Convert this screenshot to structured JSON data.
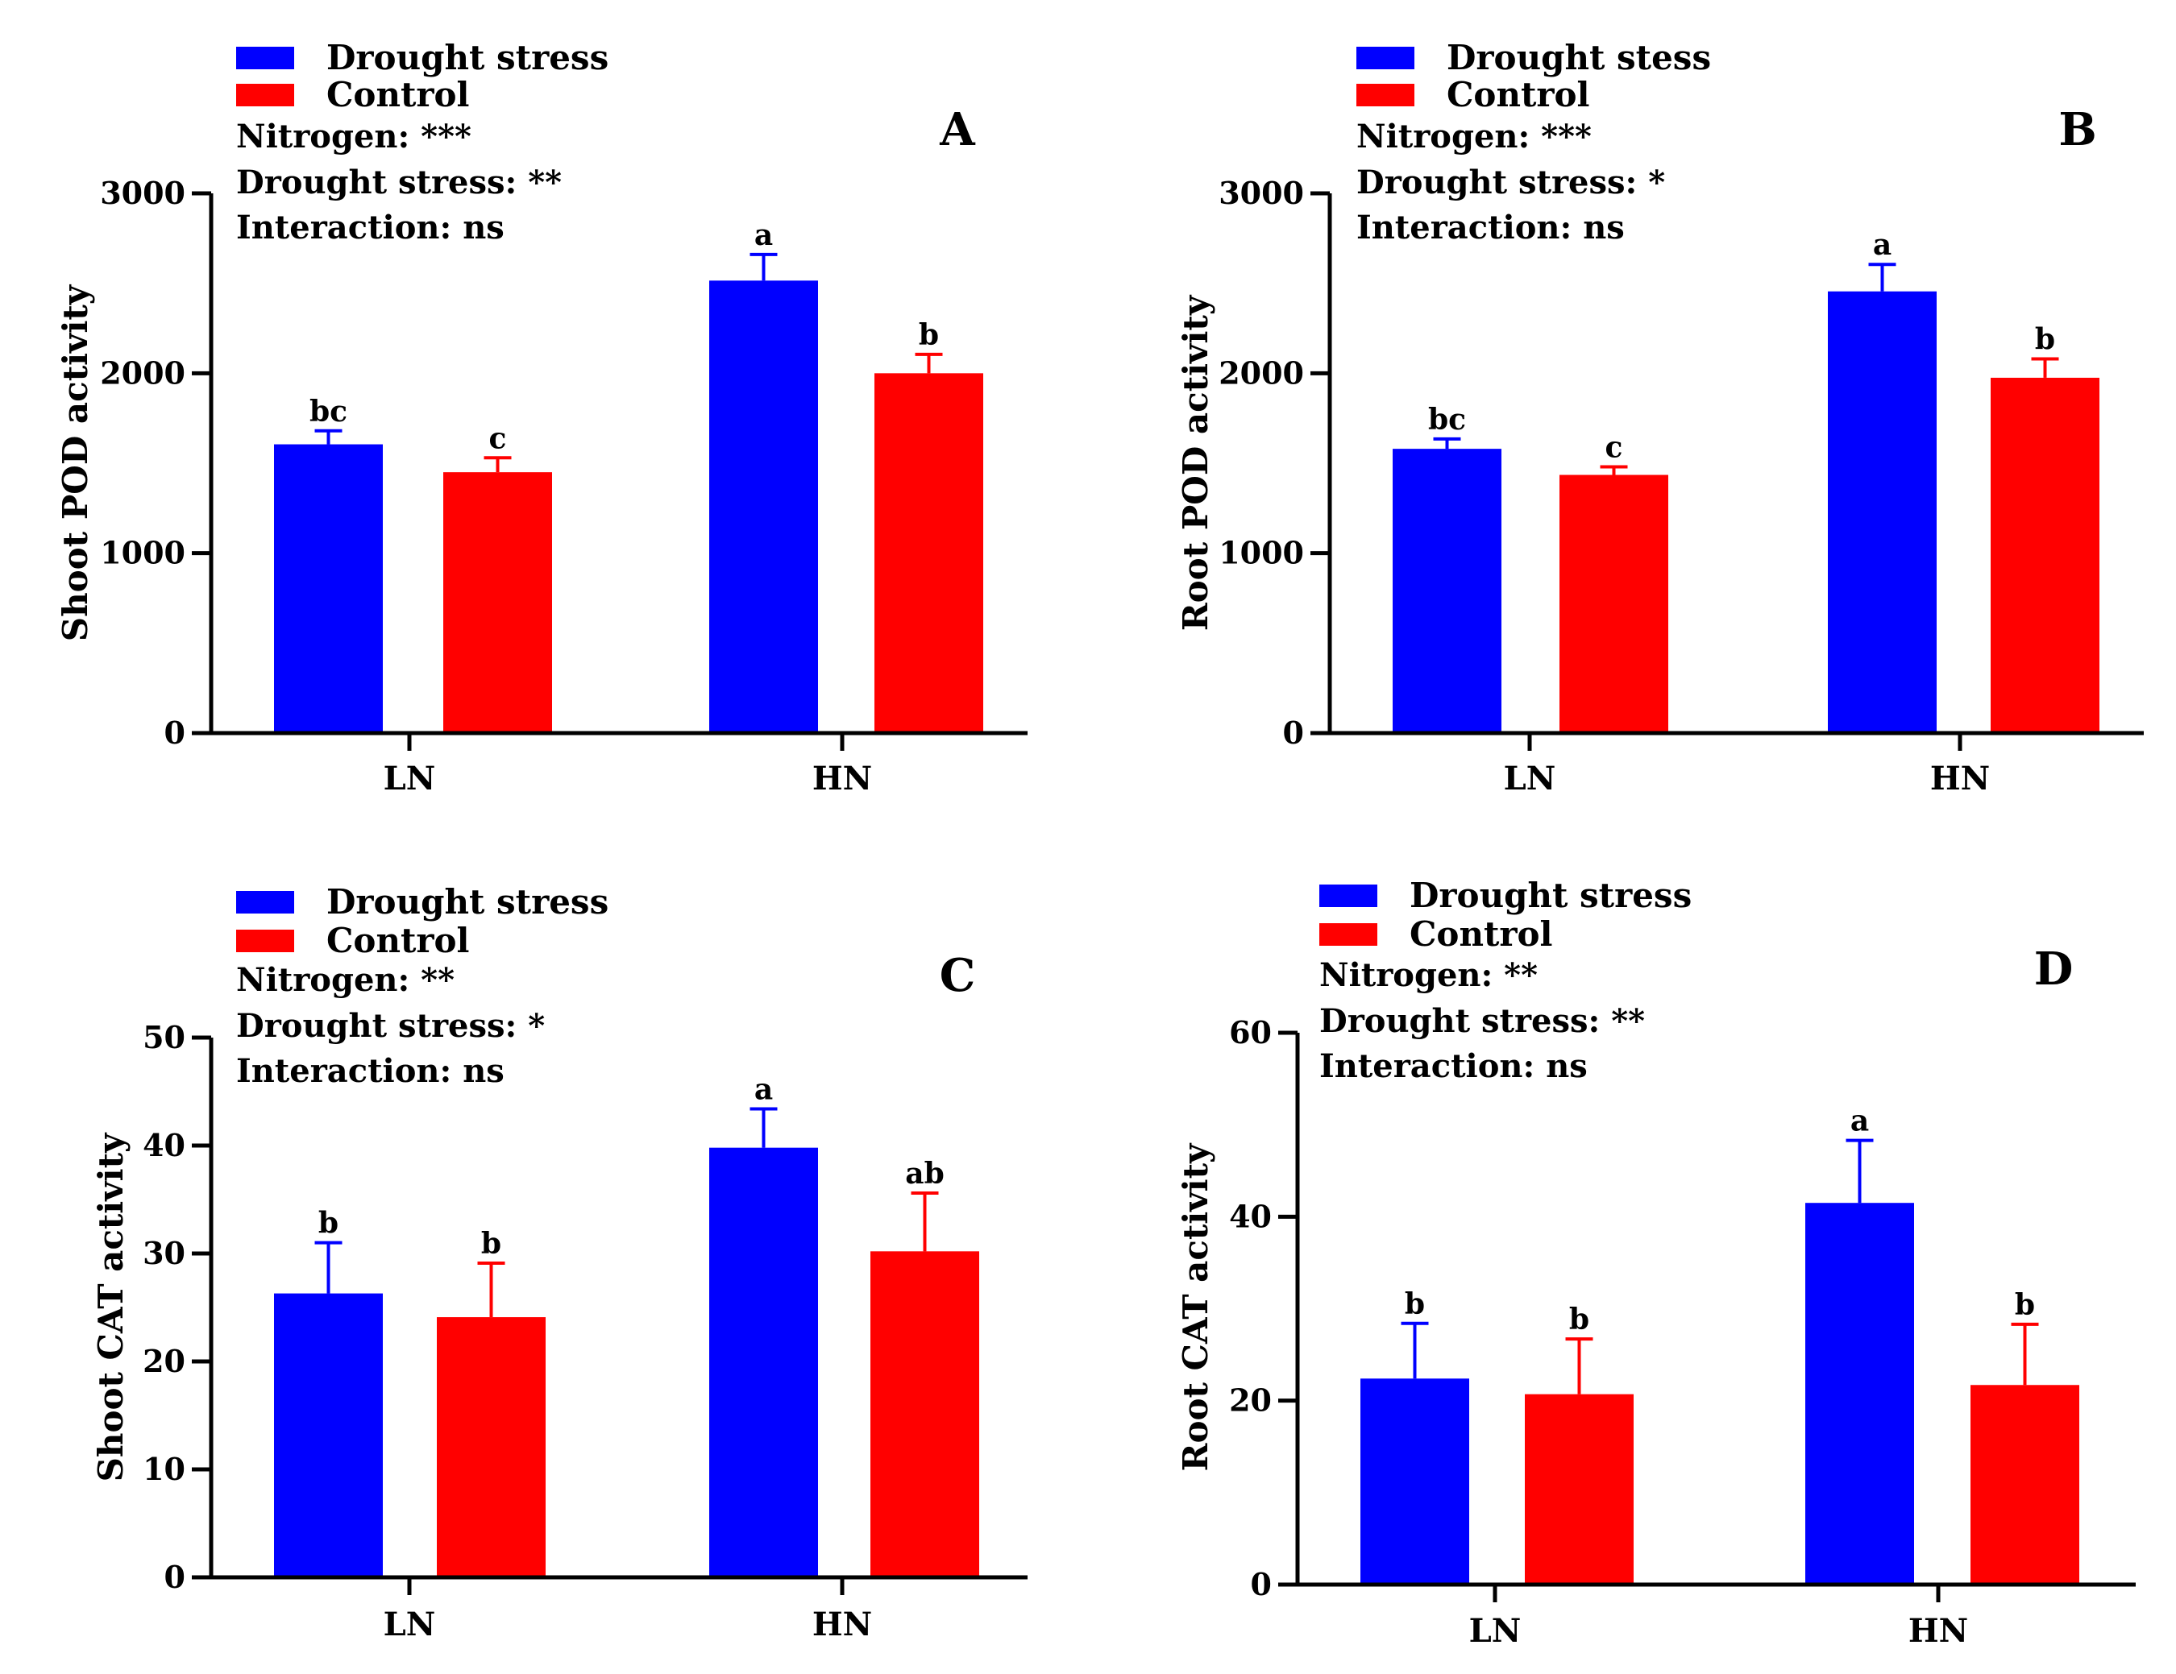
{
  "chart_data": [
    {
      "type": "bar",
      "panel": "A",
      "ylabel": "Shoot POD activity",
      "xlabel": "",
      "categories": [
        "LN",
        "HN"
      ],
      "ylim": [
        0,
        3000
      ],
      "yticks": [
        0,
        1000,
        2000,
        3000
      ],
      "legend": [
        "Drought stress",
        "Control"
      ],
      "stats": [
        "Nitrogen: ***",
        "Drought stress: **",
        "Interaction: ns"
      ],
      "series": [
        {
          "name": "Drought stress",
          "color": "#0000ff",
          "values": [
            1605,
            2515
          ],
          "errors": [
            75,
            145
          ],
          "letters": [
            "bc",
            "a"
          ]
        },
        {
          "name": "Control",
          "color": "#ff0000",
          "values": [
            1450,
            2000
          ],
          "errors": [
            80,
            105
          ],
          "letters": [
            "c",
            "b"
          ]
        }
      ]
    },
    {
      "type": "bar",
      "panel": "B",
      "ylabel": "Root POD activity",
      "xlabel": "",
      "categories": [
        "LN",
        "HN"
      ],
      "ylim": [
        0,
        3000
      ],
      "yticks": [
        0,
        1000,
        2000,
        3000
      ],
      "legend": [
        "Drought stess",
        "Control"
      ],
      "stats": [
        "Nitrogen: ***",
        "Drought stress: *",
        "Interaction: ns"
      ],
      "series": [
        {
          "name": "Drought stess",
          "color": "#0000ff",
          "values": [
            1580,
            2455
          ],
          "errors": [
            55,
            150
          ],
          "letters": [
            "bc",
            "a"
          ]
        },
        {
          "name": "Control",
          "color": "#ff0000",
          "values": [
            1435,
            1975
          ],
          "errors": [
            45,
            105
          ],
          "letters": [
            "c",
            "b"
          ]
        }
      ]
    },
    {
      "type": "bar",
      "panel": "C",
      "ylabel": "Shoot CAT activity",
      "xlabel": "",
      "categories": [
        "LN",
        "HN"
      ],
      "ylim": [
        0,
        50
      ],
      "yticks": [
        0,
        10,
        20,
        30,
        40,
        50
      ],
      "legend": [
        "Drought stress",
        "Control"
      ],
      "stats": [
        "Nitrogen: **",
        "Drought stress: *",
        "Interaction: ns"
      ],
      "series": [
        {
          "name": "Drought stress",
          "color": "#0000ff",
          "values": [
            26.3,
            39.8
          ],
          "errors": [
            4.7,
            3.6
          ],
          "letters": [
            "b",
            "a"
          ]
        },
        {
          "name": "Control",
          "color": "#ff0000",
          "values": [
            24.1,
            30.2
          ],
          "errors": [
            5.0,
            5.4
          ],
          "letters": [
            "b",
            "ab"
          ]
        }
      ]
    },
    {
      "type": "bar",
      "panel": "D",
      "ylabel": "Root CAT activity",
      "xlabel": "",
      "categories": [
        "LN",
        "HN"
      ],
      "ylim": [
        0,
        60
      ],
      "yticks": [
        0,
        20,
        40,
        60
      ],
      "legend": [
        "Drought stress",
        "Control"
      ],
      "stats": [
        "Nitrogen: **",
        "Drought stress: **",
        "Interaction: ns"
      ],
      "series": [
        {
          "name": "Drought stress",
          "color": "#0000ff",
          "values": [
            22.4,
            41.5
          ],
          "errors": [
            6.0,
            6.8
          ],
          "letters": [
            "b",
            "a"
          ]
        },
        {
          "name": "Control",
          "color": "#ff0000",
          "values": [
            20.7,
            21.7
          ],
          "errors": [
            6.0,
            6.6
          ],
          "letters": [
            "b",
            "b"
          ]
        }
      ]
    }
  ]
}
